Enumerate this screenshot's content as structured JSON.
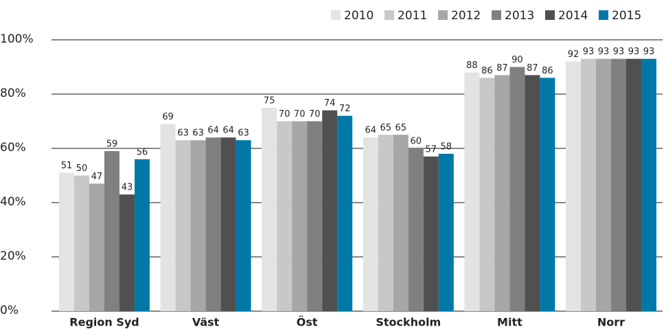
{
  "chart_data": {
    "type": "bar",
    "categories": [
      "Region Syd",
      "Väst",
      "Öst",
      "Stockholm",
      "Mitt",
      "Norr"
    ],
    "series": [
      {
        "name": "2010",
        "color": "#e3e3e3",
        "values": [
          51,
          69,
          75,
          64,
          88,
          92
        ]
      },
      {
        "name": "2011",
        "color": "#c8c8c8",
        "values": [
          50,
          63,
          70,
          65,
          86,
          93
        ]
      },
      {
        "name": "2012",
        "color": "#a6a6a6",
        "values": [
          47,
          63,
          70,
          65,
          87,
          93
        ]
      },
      {
        "name": "2013",
        "color": "#808080",
        "values": [
          59,
          64,
          70,
          60,
          90,
          93
        ]
      },
      {
        "name": "2014",
        "color": "#505050",
        "values": [
          43,
          64,
          74,
          57,
          87,
          93
        ]
      },
      {
        "name": "2015",
        "color": "#0079a8",
        "values": [
          56,
          63,
          72,
          58,
          86,
          93
        ]
      }
    ],
    "ylim": [
      0,
      100
    ],
    "yticks": [
      {
        "value": 0,
        "label": "0%"
      },
      {
        "value": 20,
        "label": "20%"
      },
      {
        "value": 40,
        "label": "40%"
      },
      {
        "value": 60,
        "label": "60%"
      },
      {
        "value": 80,
        "label": "80%"
      },
      {
        "value": 100,
        "label": "100%"
      }
    ],
    "grid": true,
    "legend": "top-right"
  }
}
